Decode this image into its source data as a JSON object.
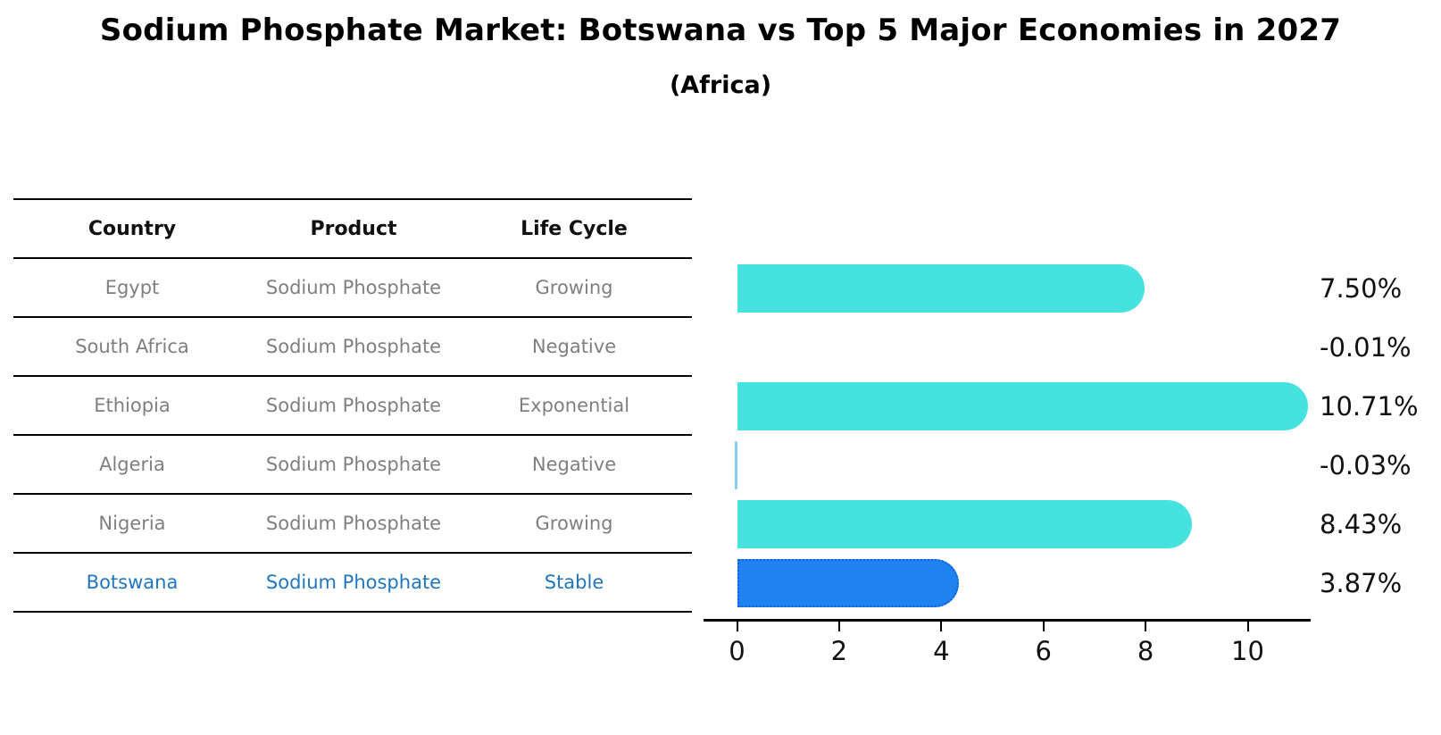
{
  "figure": {
    "title": "Sodium Phosphate Market: Botswana vs Top 5 Major Economies in 2027",
    "subtitle": "(Africa)",
    "background": "#ffffff"
  },
  "table": {
    "headers": [
      "Country",
      "Product",
      "Life Cycle"
    ],
    "rows": [
      {
        "country": "Egypt",
        "product": "Sodium Phosphate",
        "life_cycle": "Growing",
        "highlighted": false
      },
      {
        "country": "South Africa",
        "product": "Sodium Phosphate",
        "life_cycle": "Negative",
        "highlighted": false
      },
      {
        "country": "Ethiopia",
        "product": "Sodium Phosphate",
        "life_cycle": "Exponential",
        "highlighted": false
      },
      {
        "country": "Algeria",
        "product": "Sodium Phosphate",
        "life_cycle": "Negative",
        "highlighted": false
      },
      {
        "country": "Nigeria",
        "product": "Sodium Phosphate",
        "life_cycle": "Growing",
        "highlighted": false
      },
      {
        "country": "Botswana",
        "product": "Sodium Phosphate",
        "life_cycle": "Stable",
        "highlighted": true
      }
    ],
    "header_text_color": "#111111",
    "row_text_color": "#7f7f7f",
    "highlight_text_color": "#2176bd",
    "line_color": "#000000"
  },
  "chart_data": {
    "type": "bar",
    "orientation": "horizontal",
    "categories": [
      "Egypt",
      "South Africa",
      "Ethiopia",
      "Algeria",
      "Nigeria",
      "Botswana"
    ],
    "values": [
      7.5,
      -0.01,
      10.71,
      -0.03,
      8.43,
      3.87
    ],
    "value_labels": [
      "7.50%",
      "-0.01%",
      "10.71%",
      "-0.03%",
      "8.43%",
      "3.87%"
    ],
    "highlight_index": 5,
    "xticks": [
      0,
      2,
      4,
      6,
      8,
      10
    ],
    "xlim": [
      -0.65,
      11.25
    ],
    "grid": false,
    "legend": null,
    "title": "Sodium Phosphate Market: Botswana vs Top 5 Major Economies in 2027 (Africa)",
    "xlabel": "",
    "ylabel": "",
    "colors": {
      "bar": "#45E2E0",
      "highlight_bar": "#1F82F0",
      "highlight_bar_border": "#1361D1",
      "negative_bar": "#85CDF0",
      "axis": "#000000",
      "value_text": "#111111",
      "tick_text": "#111111"
    }
  }
}
